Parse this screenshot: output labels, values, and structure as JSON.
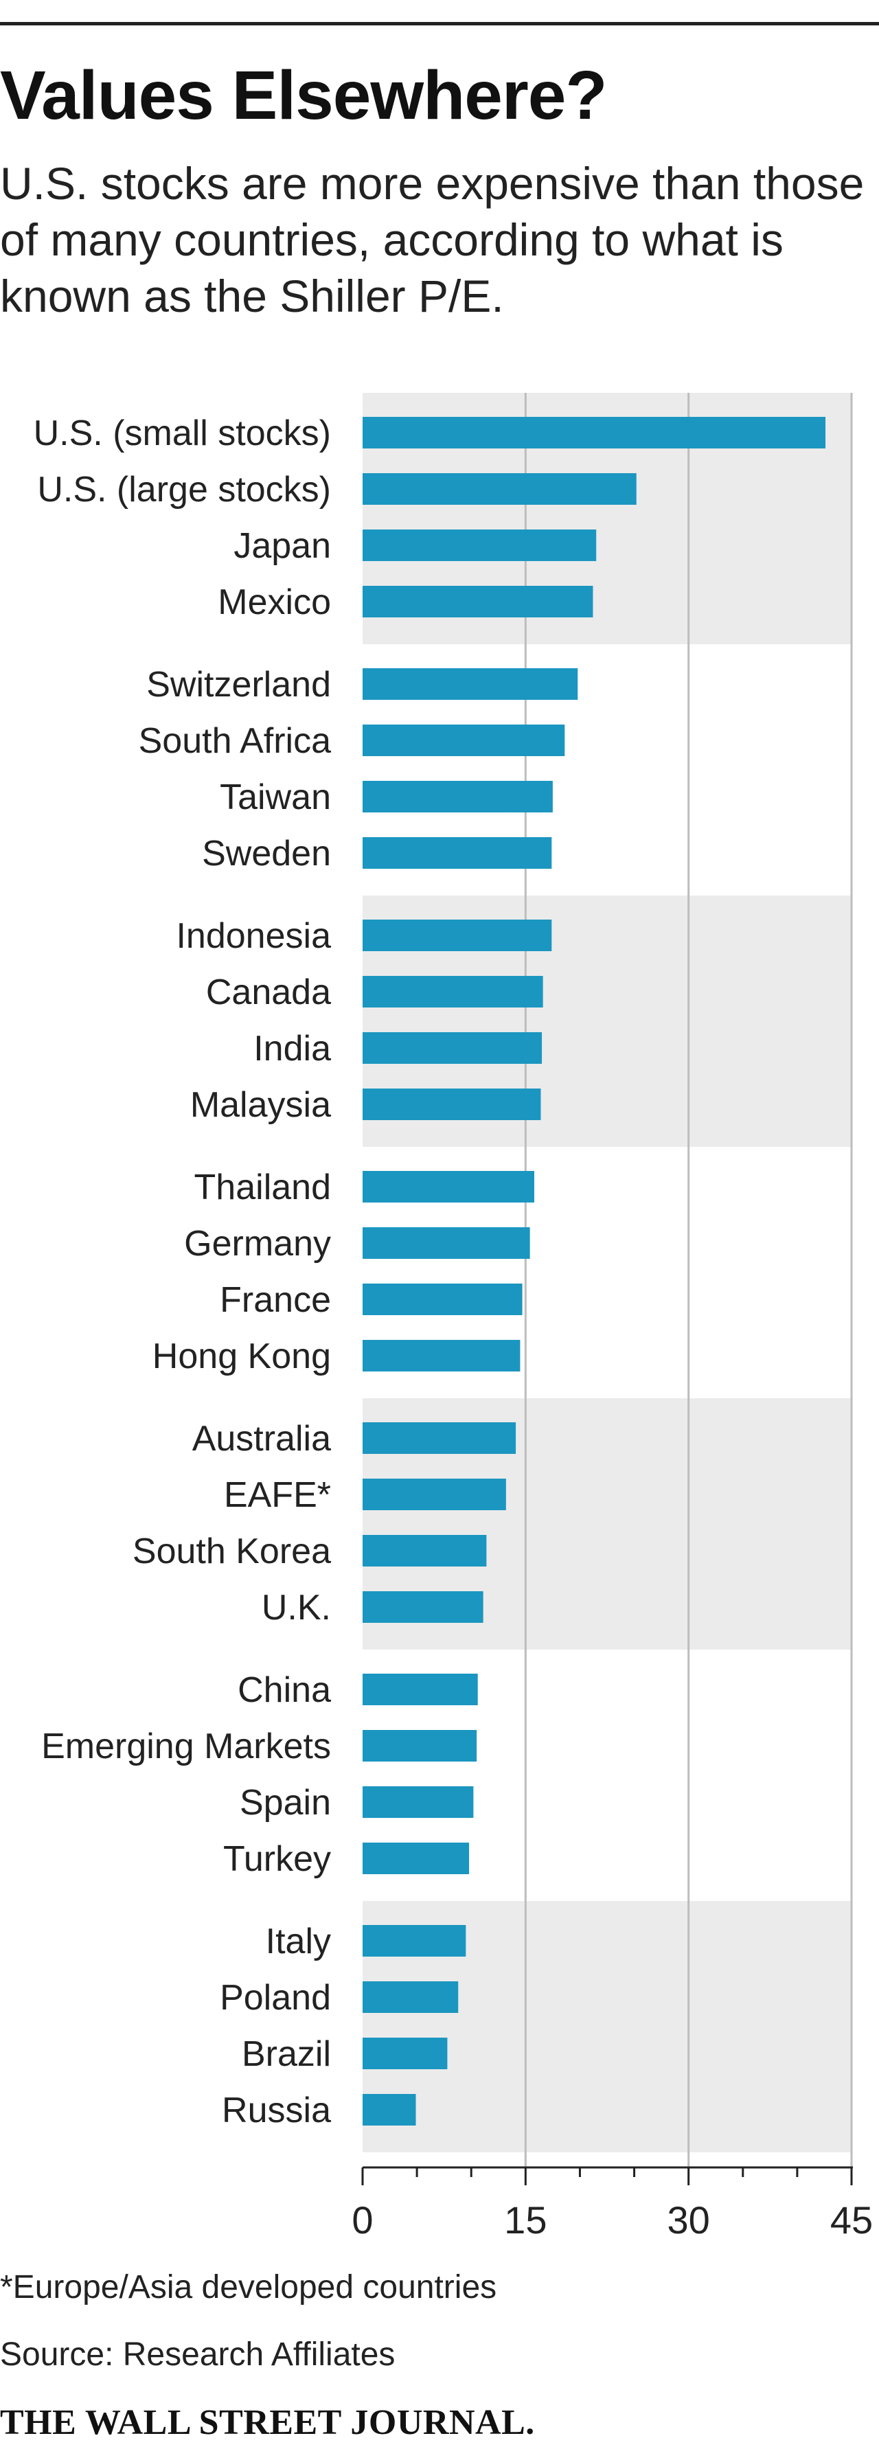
{
  "header": {
    "title": "Values Elsewhere?",
    "subtitle": "U.S. stocks are more expensive than those of many countries, according to what is known as the Shiller P/E."
  },
  "footer": {
    "footnote": "*Europe/Asia developed countries",
    "source": "Source: Research Affiliates",
    "publisher": "THE WALL STREET JOURNAL."
  },
  "colors": {
    "bar": "#1a96c0",
    "band": "#ebebeb",
    "grid": "#bdbdbd",
    "axis": "#222222"
  },
  "chart_data": {
    "type": "bar",
    "orientation": "horizontal",
    "title": "Values Elsewhere?",
    "subtitle": "U.S. stocks are more expensive than those of many countries, according to what is known as the Shiller P/E.",
    "xlabel": "",
    "ylabel": "",
    "xlim": [
      0,
      45
    ],
    "x_ticks": [
      0,
      15,
      30,
      45
    ],
    "grid": true,
    "legend": "none",
    "categories": [
      "U.S. (small stocks)",
      "U.S. (large stocks)",
      "Japan",
      "Mexico",
      "Switzerland",
      "South Africa",
      "Taiwan",
      "Sweden",
      "Indonesia",
      "Canada",
      "India",
      "Malaysia",
      "Thailand",
      "Germany",
      "France",
      "Hong Kong",
      "Australia",
      "EAFE*",
      "South Korea",
      "U.K.",
      "China",
      "Emerging Markets",
      "Spain",
      "Turkey",
      "Italy",
      "Poland",
      "Brazil",
      "Russia"
    ],
    "values": [
      42.6,
      25.2,
      21.5,
      21.2,
      19.8,
      18.6,
      17.5,
      17.4,
      17.4,
      16.6,
      16.5,
      16.4,
      15.8,
      15.4,
      14.7,
      14.5,
      14.1,
      13.2,
      11.4,
      11.1,
      10.6,
      10.5,
      10.2,
      9.8,
      9.5,
      8.8,
      7.8,
      4.9
    ],
    "group_size": 4
  }
}
